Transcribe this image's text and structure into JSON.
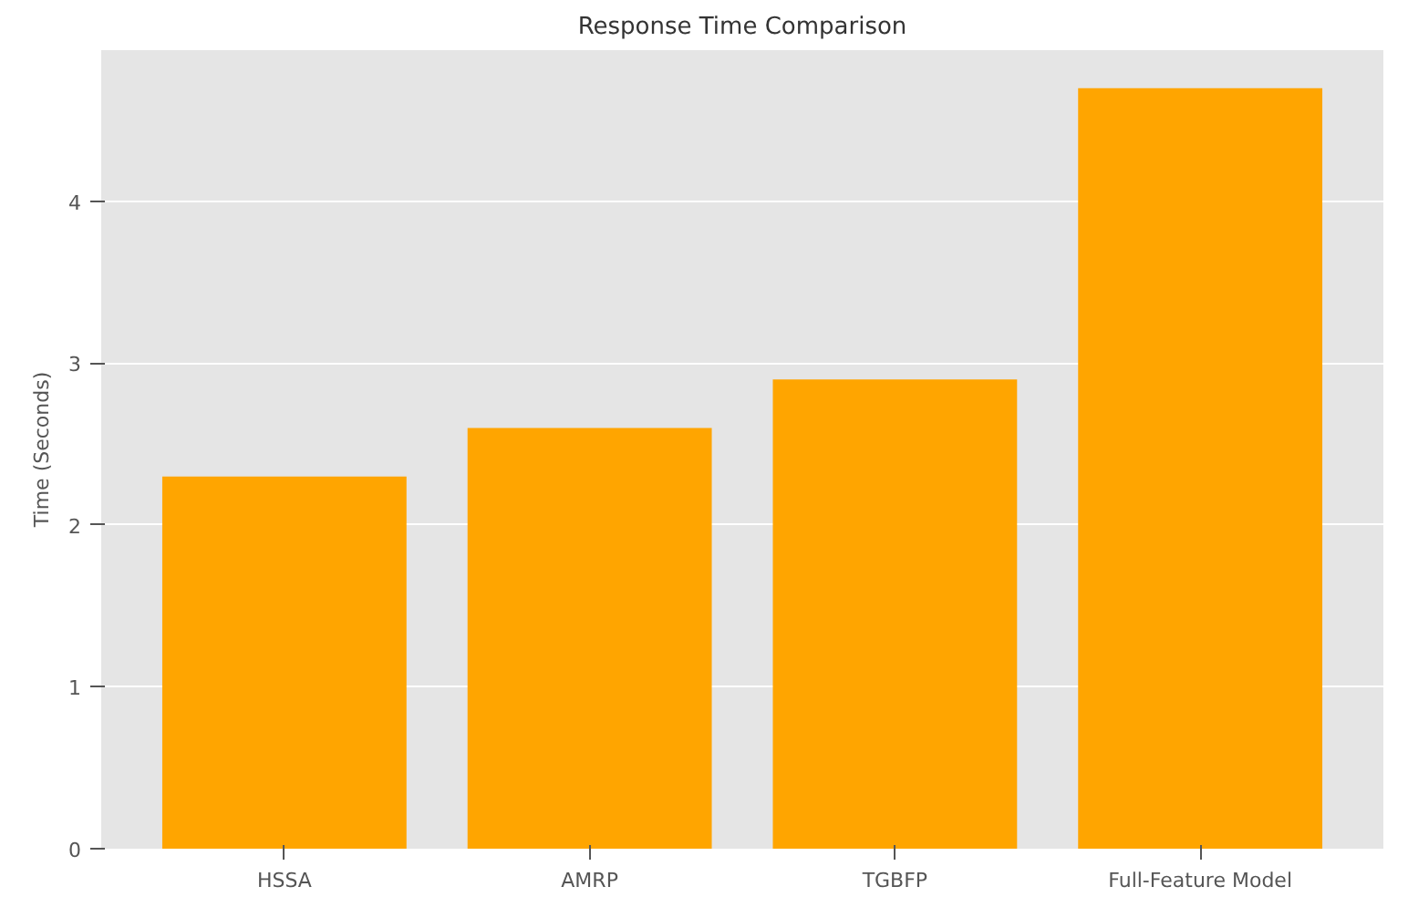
{
  "chart_data": {
    "type": "bar",
    "title": "Response Time Comparison",
    "ylabel": "Time (Seconds)",
    "categories": [
      "HSSA",
      "AMRP",
      "TGBFP",
      "Full-Feature Model"
    ],
    "values": [
      2.3,
      2.6,
      2.9,
      4.7
    ],
    "color": "#ffa500",
    "ylim": [
      0,
      4.935
    ],
    "yticks": [
      0,
      1,
      2,
      3,
      4
    ],
    "grid": "y"
  }
}
